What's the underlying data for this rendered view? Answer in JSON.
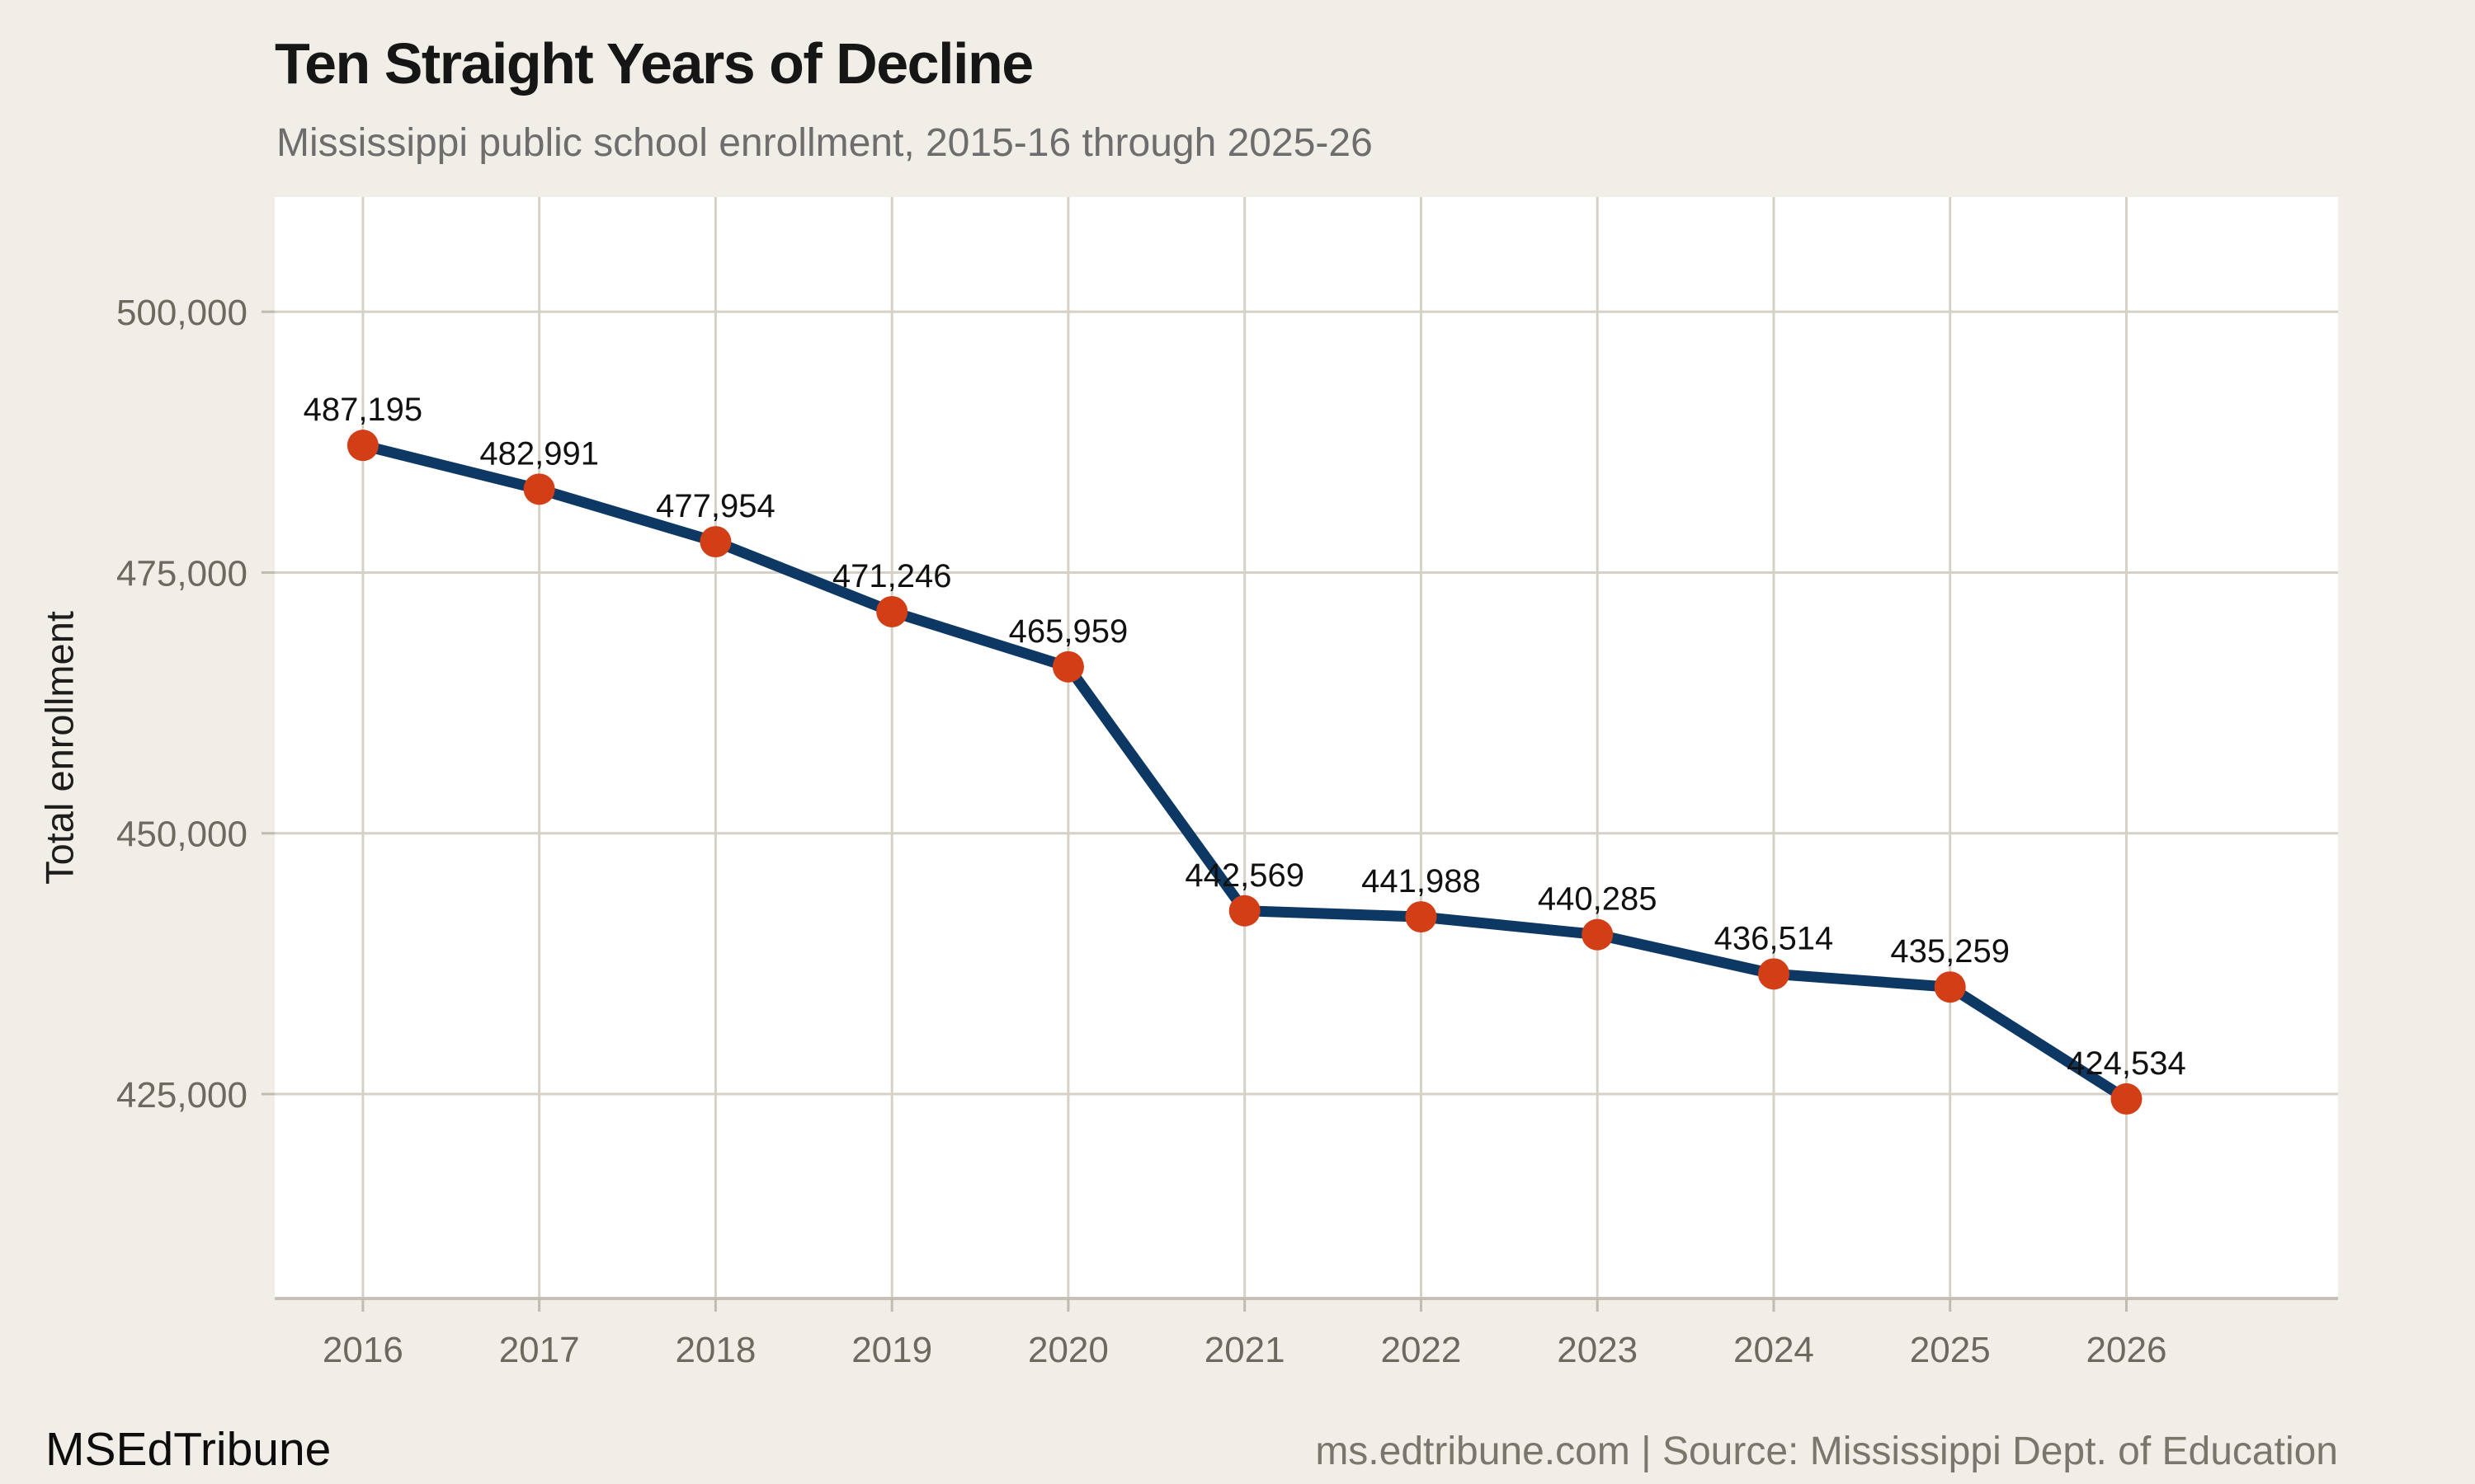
{
  "footer": {
    "brand": "MSEdTribune",
    "credit": "ms.edtribune.com | Source: Mississippi Dept. of Education"
  },
  "chart_data": {
    "type": "line",
    "title": "Ten Straight Years of Decline",
    "subtitle": "Mississippi public school enrollment, 2015-16 through 2025-26",
    "x": [
      2016,
      2017,
      2018,
      2019,
      2020,
      2021,
      2022,
      2023,
      2024,
      2025,
      2026
    ],
    "values": [
      487195,
      482991,
      477954,
      471246,
      465959,
      442569,
      441988,
      440285,
      436514,
      435259,
      424534
    ],
    "point_labels": [
      "487,195",
      "482,991",
      "477,954",
      "471,246",
      "465,959",
      "442,569",
      "441,988",
      "440,285",
      "436,514",
      "435,259",
      "424,534"
    ],
    "xlabel": "",
    "ylabel": "Total enrollment",
    "y_ticks": [
      425000,
      450000,
      475000,
      500000
    ],
    "y_tick_labels": [
      "425,000",
      "450,000",
      "475,000",
      "500,000"
    ],
    "x_tick_labels": [
      "2016",
      "2017",
      "2018",
      "2019",
      "2020",
      "2021",
      "2022",
      "2023",
      "2024",
      "2025",
      "2026"
    ],
    "ylim": [
      405400,
      511000
    ],
    "xlim": [
      2015.5,
      2027.2
    ],
    "grid": true,
    "legend": "none",
    "colors": {
      "background": "#f1eee7",
      "panel": "#ffffff",
      "gridline": "#d5d1c7",
      "axis_line": "#c6c1b6",
      "tick_mark": "#c0bbb0",
      "tick_text": "#6e695f",
      "line": "#0d3863",
      "marker": "#d23f16",
      "point_label_text": "#111111"
    }
  }
}
